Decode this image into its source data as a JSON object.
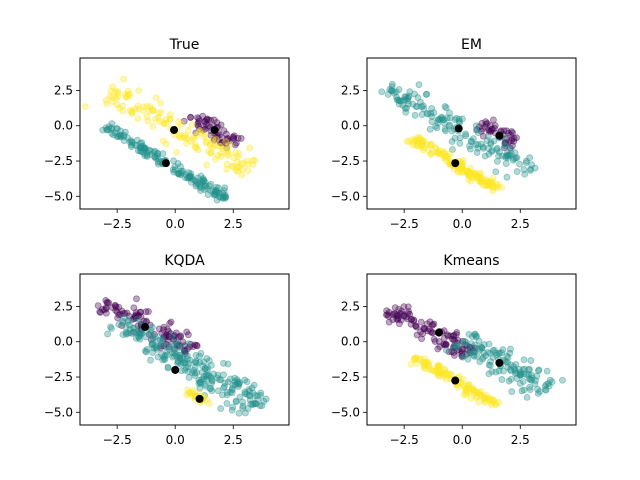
{
  "figure": {
    "background": "#ffffff",
    "axes_color": "#000000",
    "cluster_colors": [
      "#440154",
      "#21918c",
      "#fde725"
    ],
    "center_color": "#000000",
    "point_alpha": 0.35
  },
  "chart_data": [
    {
      "type": "scatter",
      "title": "True",
      "xlabel": "",
      "ylabel": "",
      "xlim": [
        -4.1,
        4.9
      ],
      "ylim": [
        -5.9,
        4.8
      ],
      "xticks": [
        -2.5,
        0.0,
        2.5
      ],
      "xtick_labels": [
        "−2.5",
        "0.0",
        "2.5"
      ],
      "yticks": [
        2.5,
        0.0,
        -2.5,
        -5.0
      ],
      "ytick_labels": [
        "2.5",
        "0.0",
        "−2.5",
        "−5.0"
      ],
      "grid": false,
      "series": [
        {
          "color": "#440154",
          "region": {
            "center": [
              1.7,
              -0.3
            ],
            "u": [
              0.7,
              -0.7
            ],
            "half_length": 1.4,
            "half_width": 0.55
          },
          "count": 60
        },
        {
          "color": "#21918c",
          "region": {
            "center": [
              -0.4,
              -2.6
            ],
            "u": [
              0.72,
              -0.7
            ],
            "half_length": 3.6,
            "half_width": 0.3
          },
          "count": 160
        },
        {
          "color": "#fde725",
          "region": {
            "center": [
              0.2,
              -0.4
            ],
            "u": [
              0.74,
              -0.67
            ],
            "half_length": 4.3,
            "half_width": 0.75
          },
          "count": 140
        }
      ],
      "centers": [
        {
          "x": 1.7,
          "y": -0.3
        },
        {
          "x": -0.4,
          "y": -2.65
        },
        {
          "x": -0.05,
          "y": -0.3
        }
      ]
    },
    {
      "type": "scatter",
      "title": "EM",
      "xlabel": "",
      "ylabel": "",
      "xlim": [
        -4.1,
        4.9
      ],
      "ylim": [
        -5.9,
        4.8
      ],
      "xticks": [
        -2.5,
        0.0,
        2.5
      ],
      "xtick_labels": [
        "−2.5",
        "0.0",
        "2.5"
      ],
      "yticks": [
        2.5,
        0.0,
        -2.5,
        -5.0
      ],
      "ytick_labels": [
        "2.5",
        "0.0",
        "−2.5",
        "−5.0"
      ],
      "grid": false,
      "series": [
        {
          "color": "#440154",
          "region": {
            "center": [
              1.6,
              -0.6
            ],
            "u": [
              0.7,
              -0.7
            ],
            "half_length": 1.1,
            "half_width": 0.45
          },
          "count": 45
        },
        {
          "color": "#21918c",
          "region": {
            "center": [
              -0.2,
              -0.3
            ],
            "u": [
              0.74,
              -0.67
            ],
            "half_length": 4.3,
            "half_width": 0.75
          },
          "count": 155
        },
        {
          "color": "#fde725",
          "region": {
            "center": [
              -0.3,
              -2.7
            ],
            "u": [
              0.72,
              -0.7
            ],
            "half_length": 2.6,
            "half_width": 0.3
          },
          "count": 150
        }
      ],
      "centers": [
        {
          "x": 1.6,
          "y": -0.7
        },
        {
          "x": -0.15,
          "y": -0.2
        },
        {
          "x": -0.3,
          "y": -2.65
        }
      ]
    },
    {
      "type": "scatter",
      "title": "KQDA",
      "xlabel": "",
      "ylabel": "",
      "xlim": [
        -4.1,
        4.9
      ],
      "ylim": [
        -5.9,
        4.8
      ],
      "xticks": [
        -2.5,
        0.0,
        2.5
      ],
      "xtick_labels": [
        "−2.5",
        "0.0",
        "2.5"
      ],
      "yticks": [
        2.5,
        0.0,
        -2.5,
        -5.0
      ],
      "ytick_labels": [
        "2.5",
        "0.0",
        "−2.5",
        "−5.0"
      ],
      "grid": false,
      "series": [
        {
          "color": "#440154",
          "region": {
            "center": [
              -1.2,
              1.1
            ],
            "u": [
              0.74,
              -0.67
            ],
            "half_length": 2.6,
            "half_width": 0.65
          },
          "count": 110
        },
        {
          "color": "#21918c",
          "region": {
            "center": [
              0.6,
              -1.6
            ],
            "u": [
              0.72,
              -0.7
            ],
            "half_length": 4.3,
            "half_width": 0.9
          },
          "count": 230
        },
        {
          "color": "#fde725",
          "region": {
            "center": [
              1.0,
              -4.0
            ],
            "u": [
              0.72,
              -0.7
            ],
            "half_length": 0.8,
            "half_width": 0.22
          },
          "count": 25
        }
      ],
      "centers": [
        {
          "x": -1.3,
          "y": 1.05
        },
        {
          "x": 0.0,
          "y": -2.0
        },
        {
          "x": 1.05,
          "y": -4.05
        }
      ]
    },
    {
      "type": "scatter",
      "title": "Kmeans",
      "xlabel": "",
      "ylabel": "",
      "xlim": [
        -4.1,
        4.9
      ],
      "ylim": [
        -5.9,
        4.8
      ],
      "xticks": [
        -2.5,
        0.0,
        2.5
      ],
      "xtick_labels": [
        "−2.5",
        "0.0",
        "2.5"
      ],
      "yticks": [
        2.5,
        0.0,
        -2.5,
        -5.0
      ],
      "ytick_labels": [
        "2.5",
        "0.0",
        "−2.5",
        "−5.0"
      ],
      "grid": false,
      "series": [
        {
          "color": "#440154",
          "region": {
            "center": [
              -1.4,
              0.7
            ],
            "u": [
              0.74,
              -0.67
            ],
            "half_length": 2.4,
            "half_width": 0.6
          },
          "count": 110
        },
        {
          "color": "#21918c",
          "region": {
            "center": [
              1.8,
              -1.6
            ],
            "u": [
              0.72,
              -0.7
            ],
            "half_length": 2.6,
            "half_width": 0.8
          },
          "count": 130
        },
        {
          "color": "#fde725",
          "region": {
            "center": [
              -0.3,
              -2.8
            ],
            "u": [
              0.72,
              -0.7
            ],
            "half_length": 2.4,
            "half_width": 0.3
          },
          "count": 120
        }
      ],
      "centers": [
        {
          "x": -1.0,
          "y": 0.65
        },
        {
          "x": 1.6,
          "y": -1.5
        },
        {
          "x": -0.3,
          "y": -2.75
        }
      ]
    }
  ]
}
